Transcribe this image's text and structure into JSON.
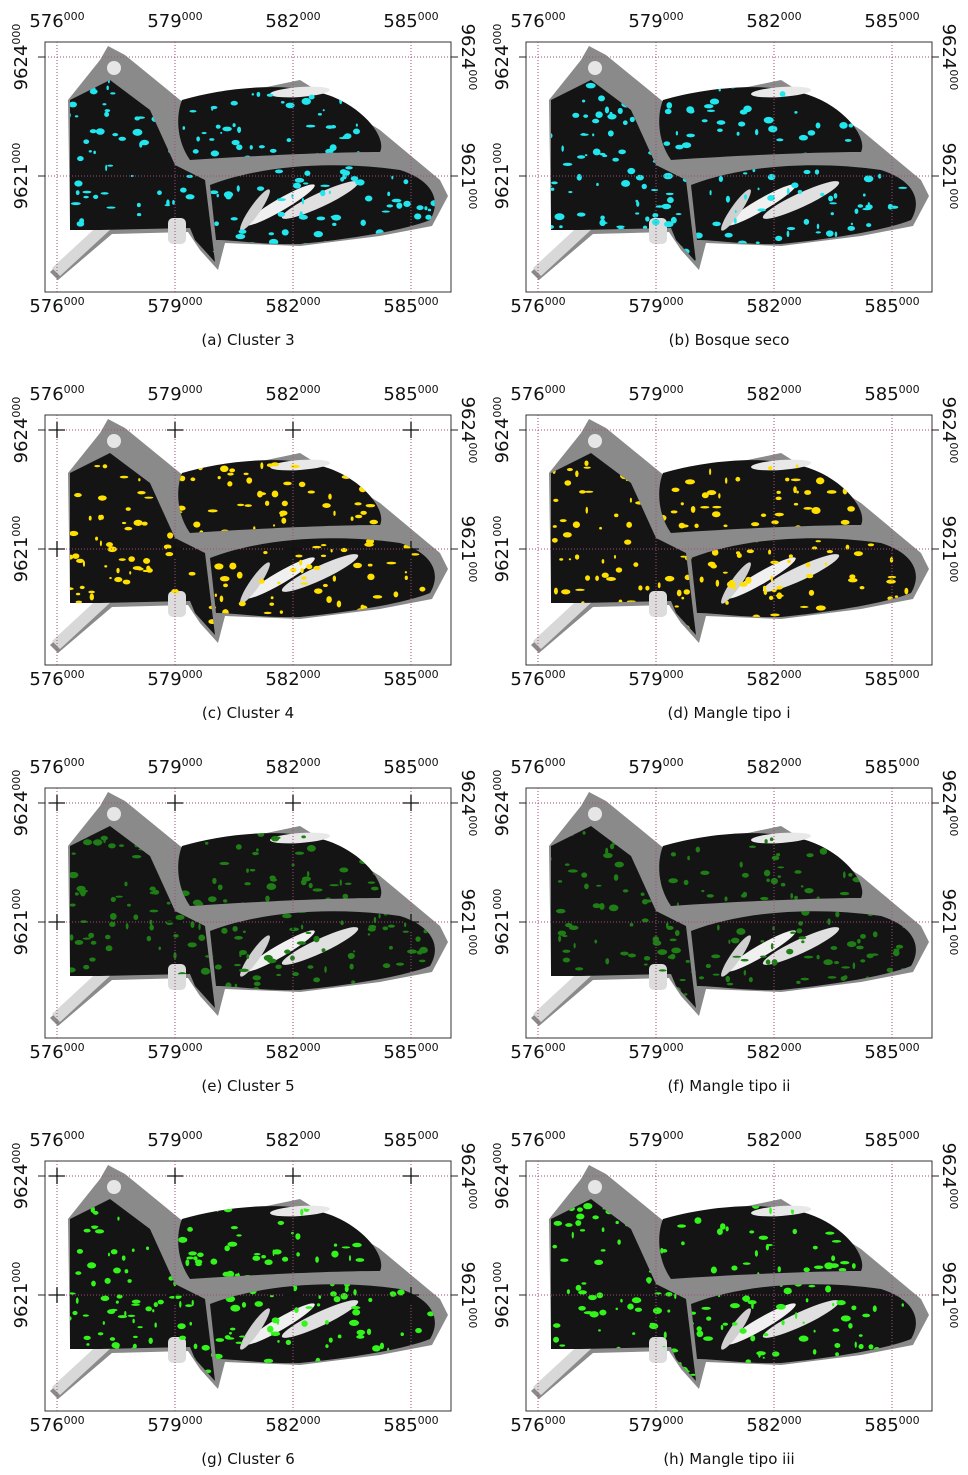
{
  "figure": {
    "x_ticks": [
      {
        "value": 576000,
        "label": "576",
        "label_sup": "000"
      },
      {
        "value": 579000,
        "label": "579",
        "label_sup": "000"
      },
      {
        "value": 582000,
        "label": "582",
        "label_sup": "000"
      },
      {
        "value": 585000,
        "label": "585",
        "label_sup": "000"
      }
    ],
    "y_ticks": [
      {
        "value": 9624000,
        "label": "9624",
        "label_sup": "000"
      },
      {
        "value": 9621000,
        "label": "9621",
        "label_sup": "000"
      }
    ],
    "panels": [
      {
        "caption": "(a) Cluster 3",
        "color": "#22e6ee",
        "crosshairs": false
      },
      {
        "caption": "(b) Bosque seco",
        "color": "#22e6ee",
        "crosshairs": false
      },
      {
        "caption": "(c) Cluster 4",
        "color": "#ffe000",
        "crosshairs": true
      },
      {
        "caption": "(d) Mangle tipo i",
        "color": "#ffe000",
        "crosshairs": false
      },
      {
        "caption": "(e) Cluster 5",
        "color": "#1f7d16",
        "crosshairs": true
      },
      {
        "caption": "(f) Mangle tipo ii",
        "color": "#1f7d16",
        "crosshairs": false
      },
      {
        "caption": "(g) Cluster 6",
        "color": "#33f51c",
        "crosshairs": true
      },
      {
        "caption": "(h) Mangle tipo iii",
        "color": "#33f51c",
        "crosshairs": false
      }
    ]
  }
}
